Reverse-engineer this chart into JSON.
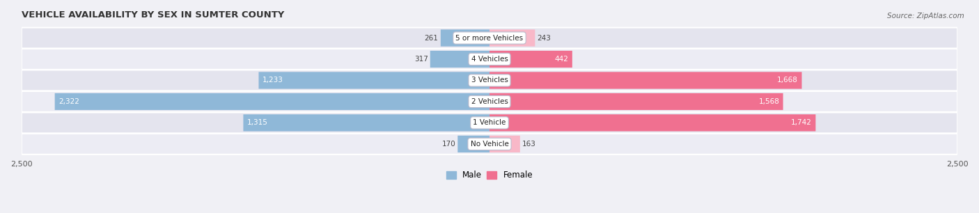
{
  "title": "VEHICLE AVAILABILITY BY SEX IN SUMTER COUNTY",
  "source": "Source: ZipAtlas.com",
  "categories": [
    "No Vehicle",
    "1 Vehicle",
    "2 Vehicles",
    "3 Vehicles",
    "4 Vehicles",
    "5 or more Vehicles"
  ],
  "male_values": [
    170,
    1315,
    2322,
    1233,
    317,
    261
  ],
  "female_values": [
    163,
    1742,
    1568,
    1668,
    442,
    243
  ],
  "male_color": "#8fb8d8",
  "female_color": "#f07090",
  "female_color_light": "#f8b8c8",
  "row_bg_colors": [
    "#ececf4",
    "#e4e4ee"
  ],
  "xlim": 2500,
  "legend_male": "Male",
  "legend_female": "Female",
  "title_fontsize": 9.5,
  "source_fontsize": 7.5,
  "value_fontsize": 7.5,
  "category_fontsize": 7.5,
  "fig_bg": "#f0f0f5"
}
